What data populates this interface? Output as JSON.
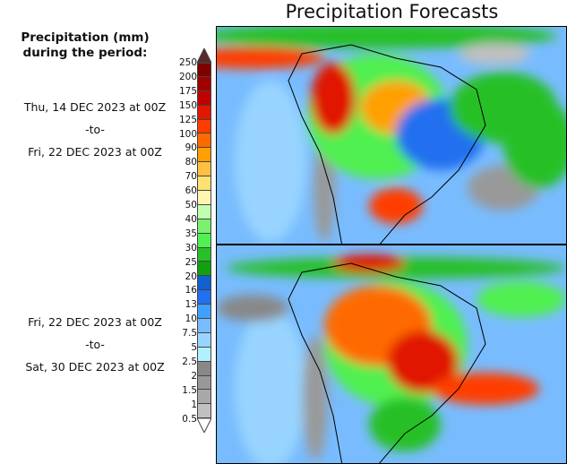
{
  "title": "Precipitation Forecasts",
  "legend": {
    "title_line1": "Precipitation (mm)",
    "title_line2": "during the period:"
  },
  "periods": [
    {
      "start": "Thu, 14 DEC 2023 at 00Z",
      "sep": "-to-",
      "end": "Fri, 22 DEC 2023 at 00Z"
    },
    {
      "start": "Fri, 22 DEC 2023 at 00Z",
      "sep": "-to-",
      "end": "Sat, 30 DEC 2023 at 00Z"
    }
  ],
  "chart_data": {
    "type": "heatmap",
    "title": "Precipitation Forecasts",
    "colorbar_label": "Precipitation (mm)",
    "ticks": [
      "250",
      "200",
      "175",
      "150",
      "125",
      "100",
      "90",
      "80",
      "70",
      "60",
      "50",
      "40",
      "35",
      "30",
      "25",
      "20",
      "16",
      "13",
      "10",
      "7.5",
      "5",
      "2.5",
      "2",
      "1.5",
      "1",
      "0.5"
    ],
    "colors": [
      "#7f0000",
      "#a00000",
      "#c00000",
      "#e01800",
      "#ff3c00",
      "#ff6a00",
      "#ffa000",
      "#ffc040",
      "#ffe070",
      "#fff5b0",
      "#c0ffb0",
      "#78f070",
      "#50f050",
      "#28c028",
      "#10a010",
      "#1060d0",
      "#2070f0",
      "#40a0ff",
      "#78bcff",
      "#98d4ff",
      "#b0f0ff",
      "#888888",
      "#989898",
      "#a8a8a8",
      "#c0c0c0"
    ],
    "over_color": "#5a2a2a",
    "under_color": "#ffffff",
    "panels": [
      "Thu, 14 DEC 2023 at 00Z -to- Fri, 22 DEC 2023 at 00Z",
      "Fri, 22 DEC 2023 at 00Z -to- Sat, 30 DEC 2023 at 00Z"
    ]
  }
}
